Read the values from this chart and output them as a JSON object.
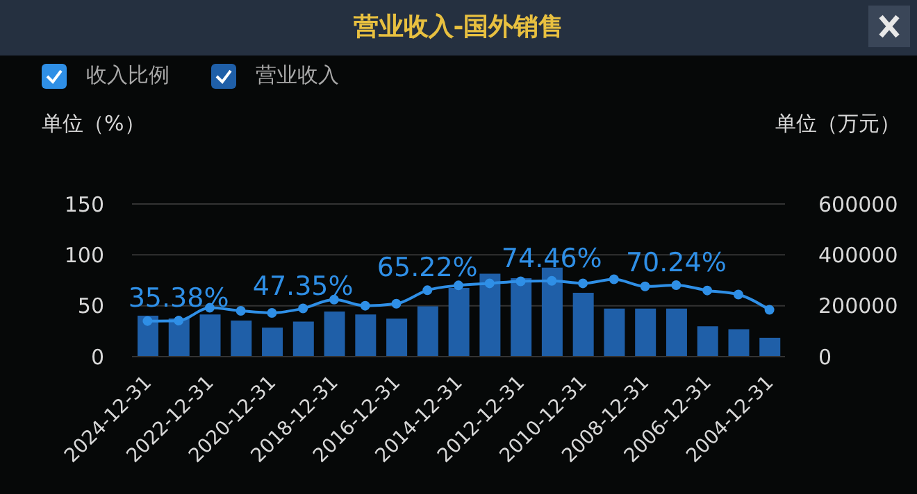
{
  "chart_data": {
    "type": "bar",
    "title": "营业收入-国外销售",
    "ylabel": "单位（%）",
    "y2label": "单位（万元）",
    "categories": [
      "2024-12-31",
      null,
      "2022-12-31",
      null,
      "2020-12-31",
      null,
      "2018-12-31",
      null,
      "2016-12-31",
      null,
      "2014-12-31",
      null,
      "2012-12-31",
      null,
      "2010-12-31",
      null,
      "2008-12-31",
      null,
      "2006-12-31",
      null,
      "2004-12-31"
    ],
    "series": [
      {
        "name": "收入比例",
        "type": "line",
        "color": "#2f8fe6",
        "values": [
          35,
          35.38,
          48,
          45,
          43,
          47.35,
          56,
          50,
          52,
          65.22,
          70,
          72,
          74,
          74.46,
          72,
          76,
          69,
          70.24,
          65,
          61,
          46
        ],
        "value_labels": [
          null,
          "35.38%",
          null,
          null,
          null,
          "47.35%",
          null,
          null,
          null,
          "65.22%",
          null,
          null,
          null,
          "74.46%",
          null,
          null,
          null,
          "70.24%",
          null,
          null,
          null
        ]
      },
      {
        "name": "营业收入",
        "axis": "y2",
        "color": "#1f5fa8",
        "values": [
          161000,
          150000,
          166000,
          142000,
          114000,
          138000,
          177000,
          166000,
          149000,
          198000,
          270000,
          326000,
          308000,
          350000,
          251000,
          189000,
          189000,
          189000,
          119000,
          108000,
          74000
        ]
      }
    ],
    "ylim": [
      0,
      150
    ],
    "yticks": [
      0,
      50,
      100,
      150
    ],
    "y2lim": [
      0,
      600000
    ],
    "y2ticks": [
      0,
      200000,
      400000,
      600000
    ],
    "grid": "y",
    "legend": "top left",
    "marker": "circle",
    "line_style": "solid"
  }
}
